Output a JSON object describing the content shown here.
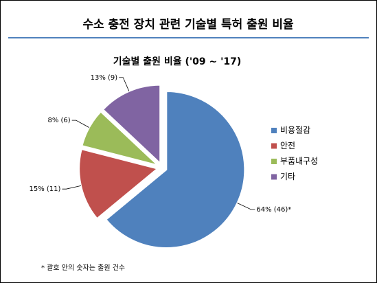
{
  "page_title": "수소 충전 장치 관련 기술별 특허 출원 비율",
  "chart_data": {
    "type": "pie",
    "title": "기술별 출원 비율 ('09 ~ '17)",
    "categories": [
      "비용절감",
      "안전",
      "부품내구성",
      "기타"
    ],
    "series": [
      {
        "name": "기술별 출원 비율",
        "values": [
          64,
          15,
          8,
          13
        ],
        "value_labels": [
          "64% (46)*",
          "15% (11)",
          "8% (6)",
          "13% (9)"
        ],
        "colors": [
          "#4f81bd",
          "#c0504d",
          "#9bbb59",
          "#8064a2"
        ]
      }
    ],
    "legend": "right"
  },
  "footnote": "* 괄호 안의 숫자는 출원 건수"
}
